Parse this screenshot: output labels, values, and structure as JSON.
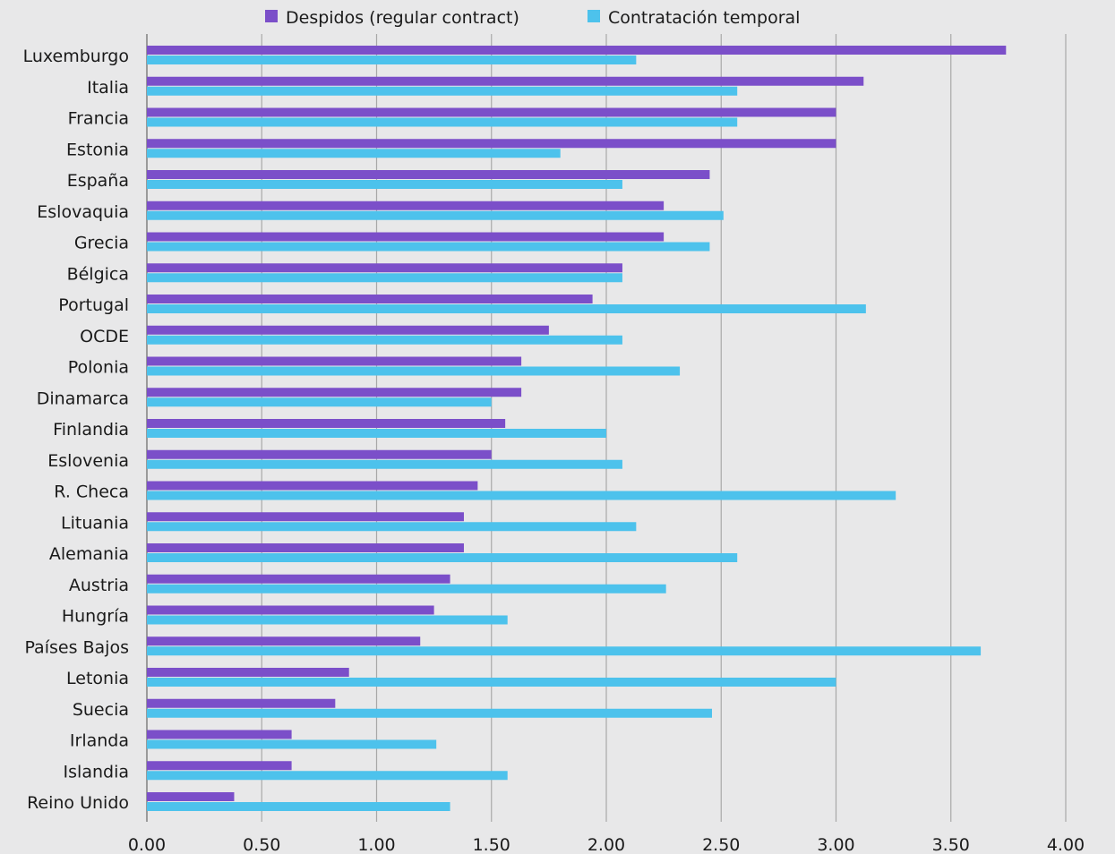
{
  "chart_data": {
    "type": "bar",
    "orientation": "horizontal",
    "categories": [
      "Luxemburgo",
      "Italia",
      "Francia",
      "Estonia",
      "España",
      "Eslovaquia",
      "Grecia",
      "Bélgica",
      "Portugal",
      "OCDE",
      "Polonia",
      "Dinamarca",
      "Finlandia",
      "Eslovenia",
      "R. Checa",
      "Lituania",
      "Alemania",
      "Austria",
      "Hungría",
      "Países Bajos",
      "Letonia",
      "Suecia",
      "Irlanda",
      "Islandia",
      "Reino Unido"
    ],
    "series": [
      {
        "name": "Despidos (regular contract)",
        "color": "#7b4fc9",
        "values": [
          3.74,
          3.12,
          3.0,
          3.0,
          2.45,
          2.25,
          2.25,
          2.07,
          1.94,
          1.75,
          1.63,
          1.63,
          1.56,
          1.5,
          1.44,
          1.38,
          1.38,
          1.32,
          1.25,
          1.19,
          0.88,
          0.82,
          0.63,
          0.63,
          0.38
        ]
      },
      {
        "name": "Contratación temporal",
        "color": "#4dc2ec",
        "values": [
          2.13,
          2.57,
          2.57,
          1.8,
          2.07,
          2.51,
          2.45,
          2.07,
          3.13,
          2.07,
          2.32,
          1.5,
          2.0,
          2.07,
          3.26,
          2.13,
          2.57,
          2.26,
          1.57,
          3.63,
          3.0,
          2.46,
          1.26,
          1.57,
          1.32
        ]
      }
    ],
    "x_ticks": [
      "0.00",
      "0.50",
      "1.00",
      "1.50",
      "2.00",
      "2.50",
      "3.00",
      "3.50",
      "4.00"
    ],
    "xlim": [
      0,
      4
    ],
    "grid": true,
    "legend_position": "top"
  }
}
